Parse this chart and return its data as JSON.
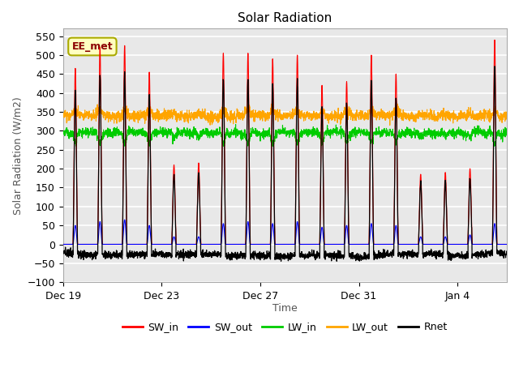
{
  "title": "Solar Radiation",
  "xlabel": "Time",
  "ylabel": "Solar Radiation (W/m2)",
  "ylim": [
    -100,
    570
  ],
  "yticks": [
    -100,
    -50,
    0,
    50,
    100,
    150,
    200,
    250,
    300,
    350,
    400,
    450,
    500,
    550
  ],
  "x_tick_labels": [
    "Dec 19",
    "Dec 23",
    "Dec 27",
    "Dec 31",
    "Jan 4"
  ],
  "x_tick_positions": [
    0,
    4,
    8,
    12,
    16
  ],
  "annotation_text": "EE_met",
  "annotation_color": "#8B0000",
  "annotation_bg": "#FFFFC0",
  "annotation_edge": "#AAAA00",
  "plot_bg": "#E8E8E8",
  "fig_bg": "#FFFFFF",
  "colors": {
    "SW_in": "#FF0000",
    "SW_out": "#0000FF",
    "LW_in": "#00CC00",
    "LW_out": "#FFA500",
    "Rnet": "#000000"
  },
  "legend_labels": [
    "SW_in",
    "SW_out",
    "LW_in",
    "LW_out",
    "Rnet"
  ],
  "n_days": 18,
  "samples_per_day": 144,
  "sw_in_peaks": [
    465,
    520,
    525,
    455,
    210,
    215,
    505,
    505,
    490,
    500,
    420,
    430,
    500,
    450,
    185,
    190,
    200,
    540
  ],
  "sw_out_peaks": [
    50,
    60,
    65,
    50,
    20,
    20,
    55,
    60,
    55,
    60,
    45,
    50,
    55,
    50,
    20,
    20,
    25,
    55
  ],
  "lw_base": 295,
  "lw_out_base": 340,
  "night_rnet": -28
}
